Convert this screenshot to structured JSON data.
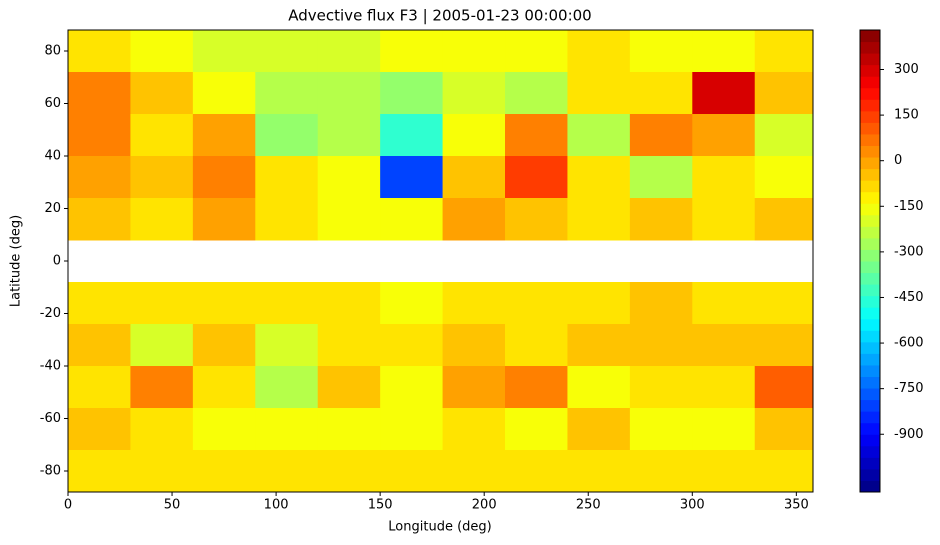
{
  "chart_data": {
    "type": "contourf",
    "title": "Advective flux F3 | 2005-01-23 00:00:00",
    "x_label": "Longitude (deg)",
    "y_label": "Latitude (deg)",
    "colormap": "jet",
    "x": [
      15,
      45,
      75,
      105,
      135,
      165,
      195,
      225,
      255,
      285,
      315,
      345
    ],
    "y": [
      80,
      64,
      48,
      32,
      16,
      0,
      -16,
      -32,
      -48,
      -64,
      -80
    ],
    "z": [
      [
        -100,
        -150,
        -200,
        -200,
        -200,
        -150,
        -150,
        -150,
        -100,
        -150,
        -150,
        -100
      ],
      [
        50,
        -50,
        -150,
        -250,
        -250,
        -300,
        -200,
        -250,
        -100,
        -100,
        300,
        -50
      ],
      [
        50,
        -100,
        0,
        -300,
        -250,
        -450,
        -150,
        50,
        -250,
        50,
        0,
        -200
      ],
      [
        0,
        -50,
        50,
        -100,
        -150,
        -800,
        -50,
        150,
        -100,
        -250,
        -100,
        -150
      ],
      [
        -50,
        -100,
        0,
        -100,
        -150,
        -150,
        0,
        -50,
        -100,
        -50,
        -100,
        -50
      ],
      [
        null,
        null,
        null,
        null,
        null,
        null,
        null,
        null,
        null,
        null,
        null,
        null
      ],
      [
        -100,
        -100,
        -100,
        -100,
        -100,
        -150,
        -100,
        -100,
        -100,
        -50,
        -100,
        -100
      ],
      [
        -50,
        -200,
        -50,
        -200,
        -100,
        -100,
        -50,
        -100,
        -50,
        -50,
        -50,
        -50
      ],
      [
        -100,
        50,
        -100,
        -250,
        -50,
        -150,
        0,
        50,
        -150,
        -100,
        -100,
        100
      ],
      [
        -50,
        -100,
        -150,
        -150,
        -150,
        -150,
        -100,
        -150,
        -50,
        -150,
        -150,
        -50
      ],
      [
        -100,
        -100,
        -100,
        -100,
        -100,
        -100,
        -100,
        -100,
        -100,
        -100,
        -100,
        -100
      ]
    ],
    "xlim": [
      0,
      358
    ],
    "ylim": [
      -88,
      88
    ],
    "xticks": [
      0,
      50,
      100,
      150,
      200,
      250,
      300,
      350
    ],
    "yticks": [
      -80,
      -60,
      -40,
      -20,
      0,
      20,
      40,
      60,
      80
    ],
    "zlim": [
      -1090,
      430
    ],
    "colorbar_ticks": [
      -900,
      -750,
      -600,
      -450,
      -300,
      -150,
      0,
      150,
      300
    ]
  }
}
